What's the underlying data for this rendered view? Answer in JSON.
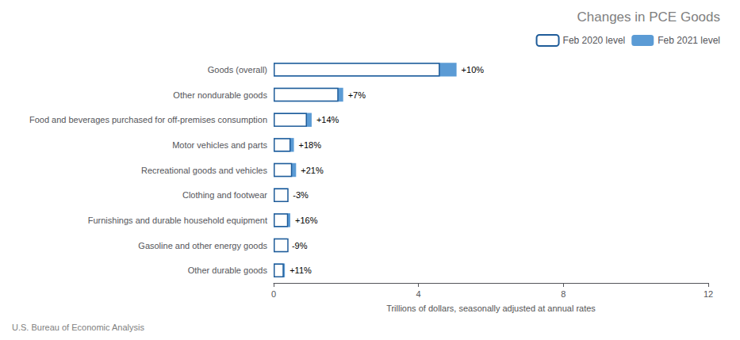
{
  "chart_data": {
    "type": "bar",
    "orientation": "horizontal",
    "title": "Changes in PCE Goods",
    "xlabel": "Trillions of dollars, seasonally adjusted at annual rates",
    "source": "U.S. Bureau of Economic Analysis",
    "categories": [
      "Goods (overall)",
      "Other nondurable goods",
      "Food and beverages purchased for off-premises consumption",
      "Motor vehicles and parts",
      "Recreational goods and vehicles",
      "Clothing and footwear",
      "Furnishings and durable household equipment",
      "Gasoline and other energy goods",
      "Other durable goods"
    ],
    "series": [
      {
        "name": "Feb 2020 level",
        "color": "#1F5C99",
        "values": [
          4.59,
          1.79,
          0.92,
          0.47,
          0.51,
          0.41,
          0.4,
          0.41,
          0.28
        ]
      },
      {
        "name": "Feb 2021 level",
        "color": "#5B9BD5",
        "values": [
          5.05,
          1.92,
          1.05,
          0.56,
          0.62,
          0.4,
          0.46,
          0.37,
          0.31
        ]
      }
    ],
    "annotations": [
      "+10%",
      "+7%",
      "+14%",
      "+18%",
      "+21%",
      "-3%",
      "+16%",
      "-9%",
      "+11%"
    ],
    "xlim": [
      0,
      12
    ],
    "xticks": [
      0,
      4,
      8,
      12
    ],
    "grid": false,
    "legend": "upper right"
  }
}
